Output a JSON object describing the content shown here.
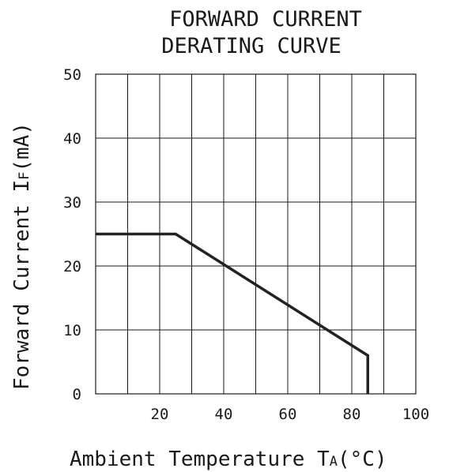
{
  "chart_data": {
    "type": "line",
    "title_lines": [
      "FORWARD CURRENT",
      "DERATING CURVE"
    ],
    "xlabel": {
      "main": "Ambient Temperature T",
      "sub": "A",
      "unit": "(°C)"
    },
    "ylabel": {
      "main": "Forward Current I",
      "sub": "F",
      "unit": "(mA)"
    },
    "xlim": [
      0,
      100
    ],
    "ylim": [
      0,
      50
    ],
    "x_ticks": [
      20,
      40,
      60,
      80,
      100
    ],
    "x_tick_labels": [
      "20",
      "40",
      "60",
      "80",
      "100"
    ],
    "x_gridlines": [
      10,
      20,
      30,
      40,
      50,
      60,
      70,
      80,
      90
    ],
    "y_ticks": [
      0,
      10,
      20,
      30,
      40,
      50
    ],
    "y_tick_labels": [
      "0",
      "10",
      "20",
      "30",
      "40",
      "50"
    ],
    "grid": true,
    "series": [
      {
        "x": [
          0,
          25,
          85,
          85
        ],
        "y": [
          25,
          25,
          6,
          0
        ]
      }
    ],
    "colors": {
      "line": "#222222",
      "grid": "#1a1a1a"
    }
  }
}
